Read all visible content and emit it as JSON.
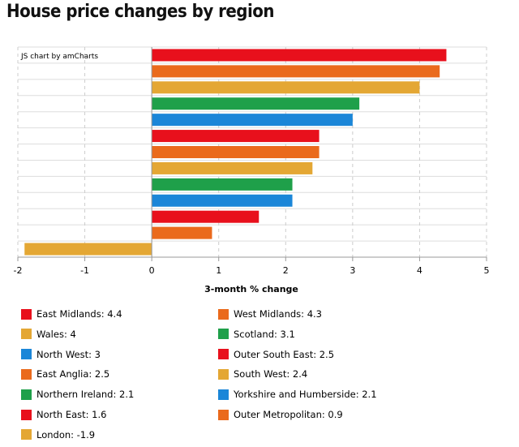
{
  "page": {
    "title": "House price changes by region",
    "credit": "JS chart by amCharts"
  },
  "colors": {
    "red": "#e8101c",
    "orange": "#ea6a1c",
    "gold": "#e4a734",
    "green": "#1fa04a",
    "blue": "#1b86d8"
  },
  "chart_data": {
    "type": "bar",
    "orientation": "horizontal",
    "title": "House price changes by region",
    "xlabel": "3-month % change",
    "ylabel": "",
    "xlim": [
      -2,
      5
    ],
    "xticks": [
      -2,
      -1,
      0,
      1,
      2,
      3,
      4,
      5
    ],
    "grid": true,
    "legend_position": "bottom",
    "categories": [
      "East Midlands",
      "West Midlands",
      "Wales",
      "Scotland",
      "North West",
      "Outer South East",
      "East Anglia",
      "South West",
      "Northern Ireland",
      "Yorkshire and Humberside",
      "North East",
      "Outer Metropolitan",
      "London"
    ],
    "values": [
      4.4,
      4.3,
      4,
      3.1,
      3,
      2.5,
      2.5,
      2.4,
      2.1,
      2.1,
      1.6,
      0.9,
      -1.9
    ],
    "bar_colors": [
      "#e8101c",
      "#ea6a1c",
      "#e4a734",
      "#1fa04a",
      "#1b86d8",
      "#e8101c",
      "#ea6a1c",
      "#e4a734",
      "#1fa04a",
      "#1b86d8",
      "#e8101c",
      "#ea6a1c",
      "#e4a734"
    ],
    "legend": [
      "East Midlands: 4.4",
      "West Midlands: 4.3",
      "Wales: 4",
      "Scotland: 3.1",
      "North West: 3",
      "Outer South East: 2.5",
      "East Anglia: 2.5",
      "South West: 2.4",
      "Northern Ireland: 2.1",
      "Yorkshire and Humberside: 2.1",
      "North East: 1.6",
      "Outer Metropolitan: 0.9",
      "London: -1.9"
    ]
  }
}
